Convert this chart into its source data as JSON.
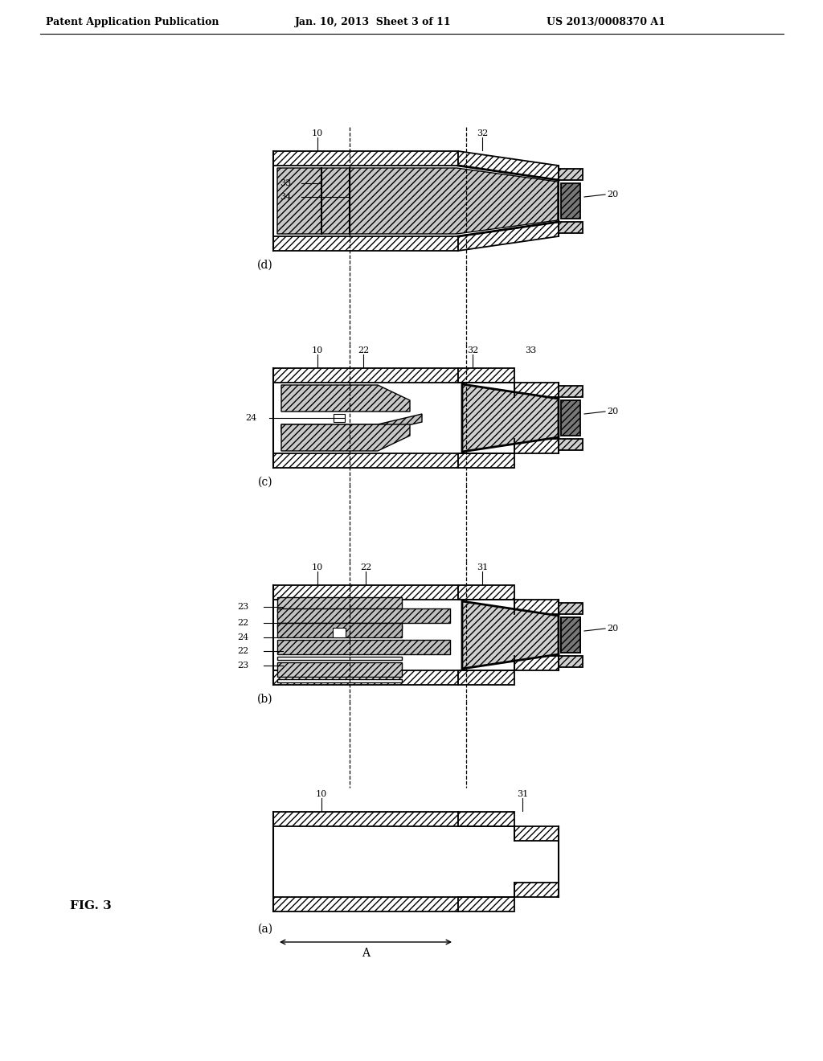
{
  "title_left": "Patent Application Publication",
  "title_center": "Jan. 10, 2013  Sheet 3 of 11",
  "title_right": "US 2013/0008370 A1",
  "fig_label": "FIG. 3",
  "background": "#ffffff",
  "hatch_wall": "////",
  "hatch_crystal": "////",
  "wall_fc": "#ffffff",
  "crystal_fc": "#d0d0d0",
  "dark_fc": "#333333",
  "seed_fc": "#777777"
}
